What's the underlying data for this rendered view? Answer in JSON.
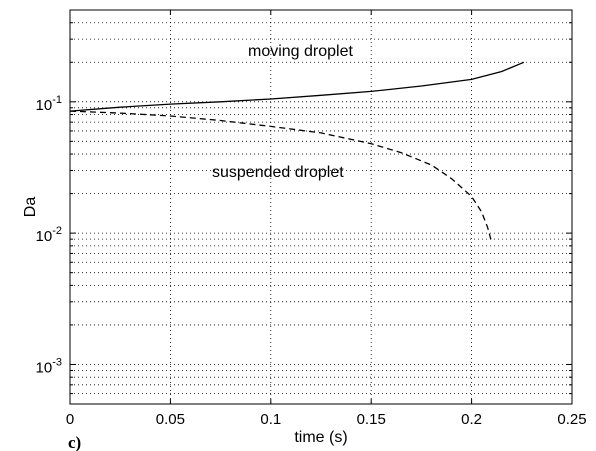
{
  "chart_data": {
    "type": "line",
    "title": "",
    "panel_label": "c)",
    "xlabel": "time (s)",
    "ylabel": "Da",
    "xlim": [
      0,
      0.25
    ],
    "ylim": [
      0.0005,
      0.5
    ],
    "yscale": "log",
    "grid": true,
    "x_ticks": [
      0,
      0.05,
      0.1,
      0.15,
      0.2,
      0.25
    ],
    "x_tick_labels": [
      "0",
      "0.05",
      "0.1",
      "0.15",
      "0.2",
      "0.25"
    ],
    "y_ticks": [
      {
        "value": 0.1,
        "base": "10",
        "exp": "-1"
      },
      {
        "value": 0.01,
        "base": "10",
        "exp": "-2"
      },
      {
        "value": 0.001,
        "base": "10",
        "exp": "-3"
      }
    ],
    "series": [
      {
        "label": "moving droplet",
        "style": "solid",
        "x": [
          0,
          0.025,
          0.05,
          0.075,
          0.1,
          0.125,
          0.15,
          0.175,
          0.2,
          0.205,
          0.215,
          0.226
        ],
        "y": [
          0.085,
          0.091,
          0.096,
          0.1,
          0.105,
          0.112,
          0.12,
          0.132,
          0.148,
          0.155,
          0.17,
          0.2
        ]
      },
      {
        "label": "suspended droplet",
        "style": "dashed",
        "x": [
          0,
          0.025,
          0.05,
          0.075,
          0.1,
          0.125,
          0.15,
          0.165,
          0.18,
          0.19,
          0.2,
          0.205,
          0.208,
          0.21
        ],
        "y": [
          0.085,
          0.082,
          0.078,
          0.072,
          0.065,
          0.058,
          0.048,
          0.041,
          0.033,
          0.026,
          0.019,
          0.0145,
          0.011,
          0.0085
        ]
      }
    ]
  }
}
